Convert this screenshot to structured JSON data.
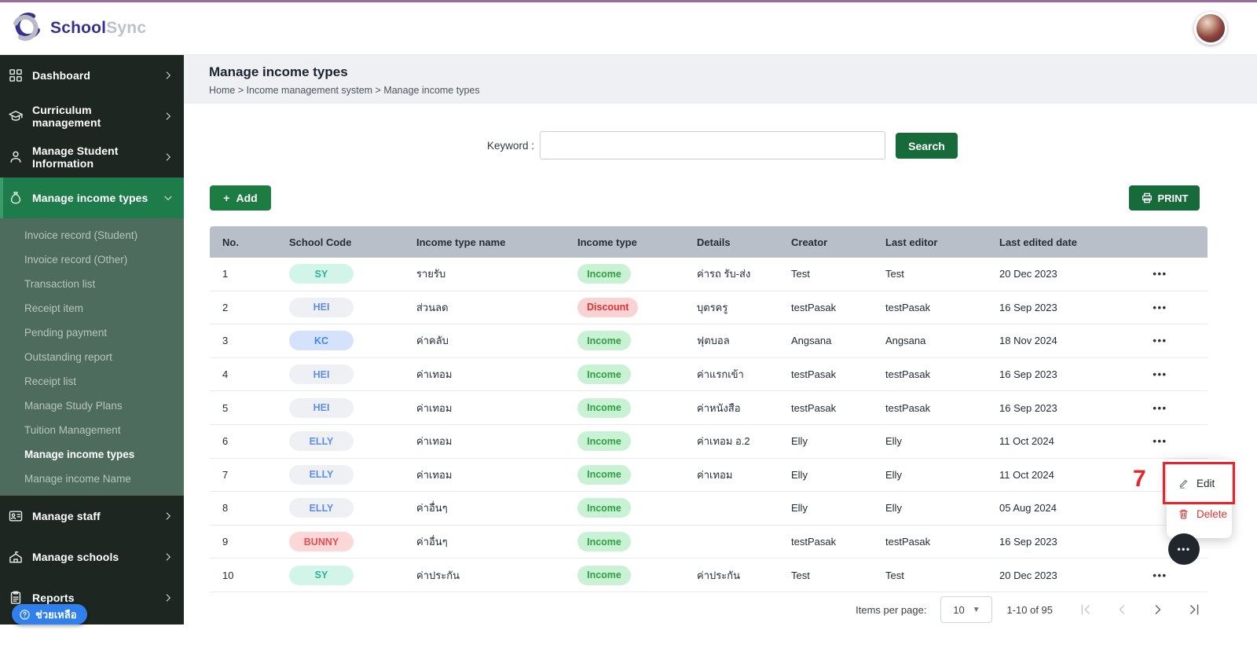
{
  "brand": {
    "name_primary": "School",
    "name_secondary": "Sync"
  },
  "page": {
    "title": "Manage income types",
    "breadcrumb": "Home > Income management system > Manage income types"
  },
  "sidebar": {
    "items_top": [
      {
        "id": "dashboard",
        "label": "Dashboard",
        "icon": "dashboard",
        "chevron": "right",
        "active": false
      },
      {
        "id": "curriculum-management",
        "label": "Curriculum management",
        "icon": "curriculum",
        "chevron": "right",
        "active": false
      },
      {
        "id": "manage-student-information",
        "label": "Manage Student Information",
        "icon": "student",
        "chevron": "right",
        "active": false
      },
      {
        "id": "manage-income-types",
        "label": "Manage income types",
        "icon": "income",
        "chevron": "down",
        "active": true
      }
    ],
    "submenu": [
      {
        "label": "Invoice record (Student)",
        "active": false
      },
      {
        "label": "Invoice record (Other)",
        "active": false
      },
      {
        "label": "Transaction list",
        "active": false
      },
      {
        "label": "Receipt item",
        "active": false
      },
      {
        "label": "Pending payment",
        "active": false
      },
      {
        "label": "Outstanding report",
        "active": false
      },
      {
        "label": "Receipt list",
        "active": false
      },
      {
        "label": "Manage Study Plans",
        "active": false
      },
      {
        "label": "Tuition Management",
        "active": false
      },
      {
        "label": "Manage income types",
        "active": true
      },
      {
        "label": "Manage income Name",
        "active": false
      }
    ],
    "items_bottom": [
      {
        "id": "manage-staff",
        "label": "Manage staff",
        "icon": "staff",
        "chevron": "right",
        "active": false
      },
      {
        "id": "manage-schools",
        "label": "Manage schools",
        "icon": "school",
        "chevron": "right",
        "active": false
      },
      {
        "id": "reports",
        "label": "Reports",
        "icon": "reports",
        "chevron": "right",
        "active": false
      }
    ],
    "help_label": "ช่วยเหลือ"
  },
  "search": {
    "label": "Keyword :",
    "value": "",
    "button_label": "Search"
  },
  "toolbar": {
    "add_label": "Add",
    "add_plus": "+",
    "print_label": "PRINT"
  },
  "table": {
    "columns": [
      "No.",
      "School Code",
      "Income type name",
      "Income type",
      "Details",
      "Creator",
      "Last editor",
      "Last edited date"
    ],
    "rows": [
      {
        "no": "1",
        "school_code": "SY",
        "code_style": "mint",
        "name": "รายรับ",
        "type": "Income",
        "type_style": "income",
        "details": "ค่ารถ รับ-ส่ง",
        "creator": "Test",
        "editor": "Test",
        "date": "20 Dec 2023",
        "actions": "dots"
      },
      {
        "no": "2",
        "school_code": "HEI",
        "code_style": "gray",
        "name": "ส่วนลด",
        "type": "Discount",
        "type_style": "discount",
        "details": "บุตรครู",
        "creator": "testPasak",
        "editor": "testPasak",
        "date": "16 Sep 2023",
        "actions": "dots"
      },
      {
        "no": "3",
        "school_code": "KC",
        "code_style": "blue",
        "name": "ค่าคลับ",
        "type": "Income",
        "type_style": "income",
        "details": "ฟุตบอล",
        "creator": "Angsana",
        "editor": "Angsana",
        "date": "18 Nov 2024",
        "actions": "dots"
      },
      {
        "no": "4",
        "school_code": "HEI",
        "code_style": "gray",
        "name": "ค่าเทอม",
        "type": "Income",
        "type_style": "income",
        "details": "ค่าแรกเข้า",
        "creator": "testPasak",
        "editor": "testPasak",
        "date": "16 Sep 2023",
        "actions": "dots"
      },
      {
        "no": "5",
        "school_code": "HEI",
        "code_style": "gray",
        "name": "ค่าเทอม",
        "type": "Income",
        "type_style": "income",
        "details": "ค่าหนังสือ",
        "creator": "testPasak",
        "editor": "testPasak",
        "date": "16 Sep 2023",
        "actions": "dots"
      },
      {
        "no": "6",
        "school_code": "ELLY",
        "code_style": "gray",
        "name": "ค่าเทอม",
        "type": "Income",
        "type_style": "income",
        "details": "ค่าเทอม อ.2",
        "creator": "Elly",
        "editor": "Elly",
        "date": "11 Oct 2024",
        "actions": "dots"
      },
      {
        "no": "7",
        "school_code": "ELLY",
        "code_style": "gray",
        "name": "ค่าเทอม",
        "type": "Income",
        "type_style": "income",
        "details": "ค่าเทอม",
        "creator": "Elly",
        "editor": "Elly",
        "date": "11 Oct 2024",
        "actions": "none"
      },
      {
        "no": "8",
        "school_code": "ELLY",
        "code_style": "gray",
        "name": "ค่าอื่นๆ",
        "type": "Income",
        "type_style": "income",
        "details": "",
        "creator": "Elly",
        "editor": "Elly",
        "date": "05 Aug 2024",
        "actions": "none"
      },
      {
        "no": "9",
        "school_code": "BUNNY",
        "code_style": "pink",
        "name": "ค่าอื่นๆ",
        "type": "Income",
        "type_style": "income",
        "details": "",
        "creator": "testPasak",
        "editor": "testPasak",
        "date": "16 Sep 2023",
        "actions": "circle"
      },
      {
        "no": "10",
        "school_code": "SY",
        "code_style": "mint",
        "name": "ค่าประกัน",
        "type": "Income",
        "type_style": "income",
        "details": "ค่าประกัน",
        "creator": "Test",
        "editor": "Test",
        "date": "20 Dec 2023",
        "actions": "dots"
      }
    ],
    "dots_glyph": "•••"
  },
  "action_menu": {
    "edit_label": "Edit",
    "delete_label": "Delete",
    "annotation_number": "7"
  },
  "pagination": {
    "items_per_page_label": "Items per page:",
    "per_page": "10",
    "range": "1-10 of 95"
  },
  "colors": {
    "accent_green": "#1e7b4a",
    "button_green": "#176a3a",
    "sidebar_dark": "#1e2622",
    "submenu_green": "#4d6c5d",
    "help_blue": "#2f80ed",
    "annotation_red": "#e8242a",
    "top_border_purple": "#9a6b9e",
    "table_head_gray": "#b9bfc9"
  }
}
